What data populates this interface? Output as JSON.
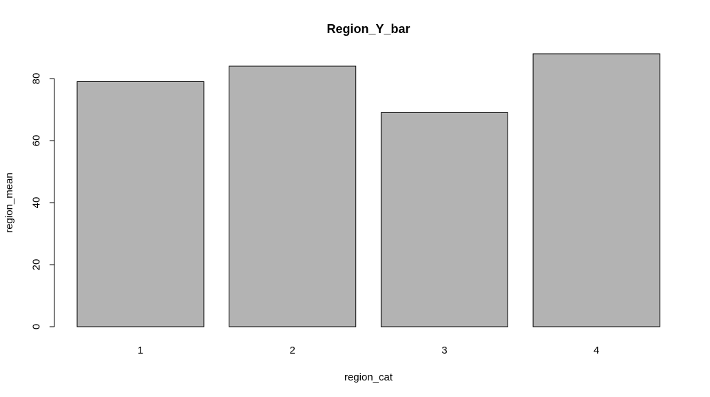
{
  "chart_data": {
    "type": "bar",
    "title": "Region_Y_bar",
    "xlabel": "region_cat",
    "ylabel": "region_mean",
    "categories": [
      "1",
      "2",
      "3",
      "4"
    ],
    "values": [
      79,
      84,
      69,
      88
    ],
    "ylim": [
      0,
      88
    ],
    "yticks": [
      0,
      20,
      40,
      60,
      80
    ],
    "grid": false,
    "legend": "none",
    "bar_color": "#b3b3b3",
    "bar_border_color": "#000000"
  }
}
